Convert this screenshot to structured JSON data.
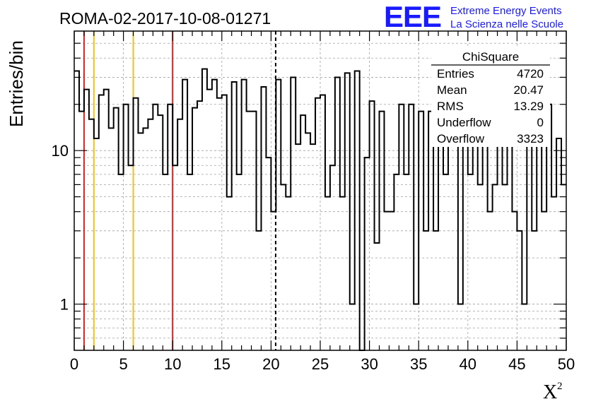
{
  "chart_data": {
    "type": "histogram",
    "title": "ROMA-02-2017-10-08-01271",
    "ylabel": "Entries/bin",
    "xlabel": "X",
    "xlabel_superscript": "2",
    "y_scale": "log",
    "xlim": [
      0,
      50
    ],
    "ylim": [
      0.5,
      60
    ],
    "bin_width": 0.5,
    "x_ticks": [
      "0",
      "5",
      "10",
      "15",
      "20",
      "25",
      "30",
      "35",
      "40",
      "45",
      "50"
    ],
    "y_ticks": [
      "1",
      "10"
    ],
    "grid": true,
    "bin_values": [
      33,
      18,
      25,
      16,
      12,
      23,
      25,
      14,
      19,
      7,
      20,
      8,
      22,
      13,
      14,
      16,
      20,
      17,
      7,
      20,
      8,
      16,
      29,
      7,
      19,
      21,
      34,
      25,
      29,
      22,
      23,
      5,
      28,
      7,
      29,
      18,
      18,
      3,
      26,
      9,
      4,
      29,
      6,
      5,
      30,
      11,
      17,
      13,
      11,
      22,
      23,
      5,
      8,
      30,
      5,
      32,
      1,
      33,
      0.1,
      9,
      21,
      2.5,
      18,
      4,
      4,
      7,
      20,
      7,
      20,
      1,
      18,
      3,
      18,
      3,
      18,
      7,
      18,
      19,
      1,
      20,
      7,
      19,
      6,
      20,
      4,
      6,
      19,
      6,
      18,
      4,
      3,
      1,
      20,
      3,
      20,
      4,
      20,
      5,
      12,
      6
    ],
    "vertical_lines": [
      {
        "x": 1,
        "color": "#e02020",
        "style": "solid"
      },
      {
        "x": 2,
        "color": "#f0c020",
        "style": "solid"
      },
      {
        "x": 6,
        "color": "#f0c020",
        "style": "solid"
      },
      {
        "x": 10,
        "color": "#e02020",
        "style": "solid"
      },
      {
        "x": 20.47,
        "color": "#000000",
        "style": "dashed"
      }
    ],
    "stats_box": {
      "title": "ChiSquare",
      "rows": [
        {
          "label": "Entries",
          "value": "4720"
        },
        {
          "label": "Mean",
          "value": "20.47"
        },
        {
          "label": "RMS",
          "value": "13.29"
        },
        {
          "label": "Underflow",
          "value": "0"
        },
        {
          "label": "Overflow",
          "value": "3323"
        }
      ]
    }
  },
  "logo": {
    "mark": "EEE",
    "line1": "Extreme Energy Events",
    "line2": "La Scienza nelle Scuole",
    "color": "#1a1aff"
  }
}
